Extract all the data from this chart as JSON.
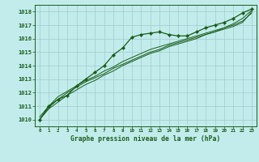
{
  "title": "Graphe pression niveau de la mer (hPa)",
  "xlabel_ticks": [
    0,
    1,
    2,
    3,
    4,
    5,
    6,
    7,
    8,
    9,
    10,
    11,
    12,
    13,
    14,
    15,
    16,
    17,
    18,
    19,
    20,
    21,
    22,
    23
  ],
  "ylim": [
    1009.5,
    1018.5
  ],
  "xlim": [
    -0.5,
    23.5
  ],
  "yticks": [
    1010,
    1011,
    1012,
    1013,
    1014,
    1015,
    1016,
    1017,
    1018
  ],
  "bg_color": "#c2ecec",
  "grid_color": "#a0cccc",
  "line_color": "#1a5c1a",
  "marker_color": "#1a5c1a",
  "line1": [
    1010.0,
    1011.0,
    1011.5,
    1011.8,
    1012.5,
    1013.0,
    1013.5,
    1014.0,
    1014.8,
    1015.3,
    1016.1,
    1016.3,
    1016.4,
    1016.5,
    1016.3,
    1016.2,
    1016.2,
    1016.5,
    1016.8,
    1017.0,
    1017.2,
    1017.5,
    1017.9,
    1018.2
  ],
  "line2": [
    1010.2,
    1011.0,
    1011.7,
    1012.1,
    1012.5,
    1012.9,
    1013.2,
    1013.6,
    1013.9,
    1014.3,
    1014.6,
    1014.9,
    1015.2,
    1015.4,
    1015.6,
    1015.8,
    1016.0,
    1016.2,
    1016.4,
    1016.6,
    1016.8,
    1017.1,
    1017.5,
    1018.1
  ],
  "line3": [
    1010.0,
    1010.9,
    1011.5,
    1012.0,
    1012.4,
    1012.8,
    1013.1,
    1013.4,
    1013.8,
    1014.1,
    1014.4,
    1014.7,
    1015.0,
    1015.2,
    1015.5,
    1015.7,
    1015.9,
    1016.1,
    1016.3,
    1016.5,
    1016.8,
    1017.0,
    1017.3,
    1017.9
  ],
  "line4": [
    1010.0,
    1010.8,
    1011.3,
    1011.8,
    1012.2,
    1012.6,
    1012.9,
    1013.3,
    1013.6,
    1014.0,
    1014.3,
    1014.6,
    1014.9,
    1015.1,
    1015.4,
    1015.6,
    1015.8,
    1016.0,
    1016.3,
    1016.5,
    1016.7,
    1016.9,
    1017.2,
    1018.0
  ]
}
